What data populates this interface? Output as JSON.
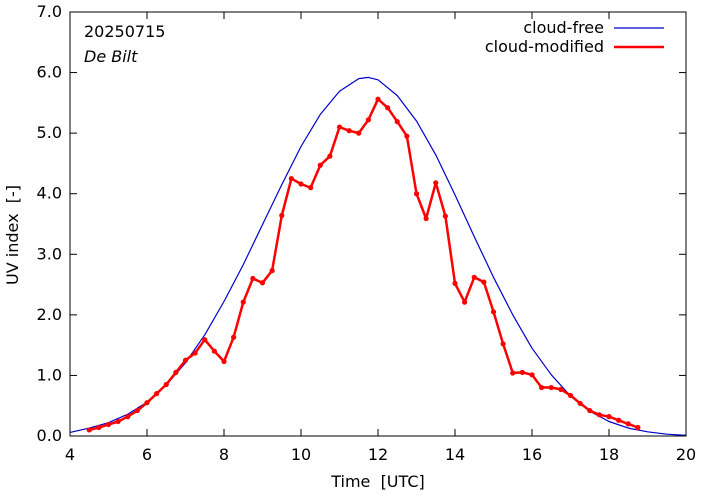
{
  "chart_data": {
    "type": "line",
    "date_label": "20250715",
    "location_label": "De Bilt",
    "xlabel": "Time  [UTC]",
    "ylabel": "UV index  [-]",
    "xlim": [
      4,
      20
    ],
    "ylim": [
      0,
      7
    ],
    "x_ticks": [
      4,
      6,
      8,
      10,
      12,
      14,
      16,
      18,
      20
    ],
    "x_tick_labels": [
      "4",
      "6",
      "8",
      "10",
      "12",
      "14",
      "16",
      "18",
      "20"
    ],
    "y_ticks": [
      0,
      1,
      2,
      3,
      4,
      5,
      6,
      7
    ],
    "y_tick_labels": [
      "0.0",
      "1.0",
      "2.0",
      "3.0",
      "4.0",
      "5.0",
      "6.0",
      "7.0"
    ],
    "grid": false,
    "legend_position": "top-right",
    "series": [
      {
        "name": "cloud-free",
        "color": "#0000cc",
        "style": "line",
        "x": [
          4.0,
          4.5,
          5.0,
          5.5,
          6.0,
          6.5,
          7.0,
          7.5,
          8.0,
          8.5,
          9.0,
          9.5,
          10.0,
          10.5,
          11.0,
          11.5,
          11.75,
          12.0,
          12.5,
          13.0,
          13.5,
          14.0,
          14.5,
          15.0,
          15.5,
          16.0,
          16.5,
          17.0,
          17.5,
          18.0,
          18.5,
          19.0,
          19.5,
          20.0
        ],
        "y": [
          0.06,
          0.13,
          0.22,
          0.36,
          0.56,
          0.84,
          1.21,
          1.67,
          2.22,
          2.83,
          3.49,
          4.15,
          4.78,
          5.31,
          5.69,
          5.9,
          5.92,
          5.88,
          5.62,
          5.2,
          4.64,
          3.98,
          3.29,
          2.62,
          2.0,
          1.45,
          1.01,
          0.66,
          0.41,
          0.24,
          0.13,
          0.07,
          0.03,
          0.01
        ]
      },
      {
        "name": "cloud-modified",
        "color": "#ff0000",
        "style": "line-points",
        "x": [
          4.5,
          4.75,
          5.0,
          5.25,
          5.5,
          5.75,
          6.0,
          6.25,
          6.5,
          6.75,
          7.0,
          7.25,
          7.5,
          7.75,
          8.0,
          8.25,
          8.5,
          8.75,
          9.0,
          9.25,
          9.5,
          9.75,
          10.0,
          10.25,
          10.5,
          10.75,
          11.0,
          11.25,
          11.5,
          11.75,
          12.0,
          12.25,
          12.5,
          12.75,
          13.0,
          13.25,
          13.5,
          13.75,
          14.0,
          14.25,
          14.5,
          14.75,
          15.0,
          15.25,
          15.5,
          15.75,
          16.0,
          16.25,
          16.5,
          16.75,
          17.0,
          17.25,
          17.5,
          17.75,
          18.0,
          18.25,
          18.5,
          18.75
        ],
        "y": [
          0.1,
          0.14,
          0.19,
          0.24,
          0.32,
          0.42,
          0.55,
          0.7,
          0.85,
          1.05,
          1.25,
          1.37,
          1.59,
          1.4,
          1.23,
          1.63,
          2.21,
          2.6,
          2.53,
          2.73,
          3.64,
          4.25,
          4.16,
          4.1,
          4.47,
          4.62,
          5.1,
          5.04,
          5.0,
          5.22,
          5.56,
          5.42,
          5.19,
          4.95,
          4.0,
          3.59,
          4.18,
          3.63,
          2.52,
          2.21,
          2.62,
          2.54,
          2.05,
          1.52,
          1.04,
          1.05,
          1.01,
          0.8,
          0.8,
          0.77,
          0.67,
          0.54,
          0.42,
          0.35,
          0.32,
          0.26,
          0.2,
          0.14
        ]
      }
    ]
  }
}
